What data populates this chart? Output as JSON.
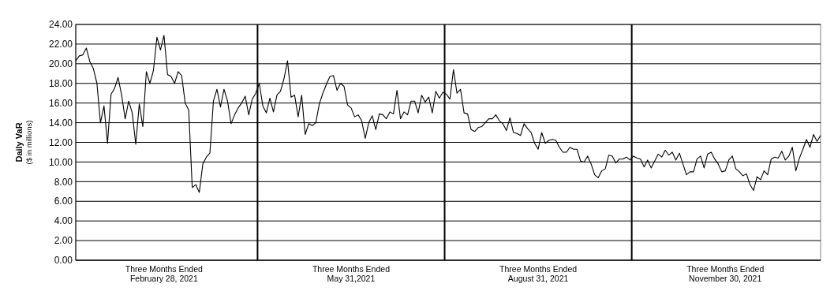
{
  "chart_data": {
    "type": "line",
    "ylabel": "Daily VaR\n($ in millions)",
    "categories": [
      null,
      null,
      null,
      null,
      null,
      null,
      null,
      null,
      null,
      null,
      null,
      null,
      null,
      null,
      null,
      null,
      null,
      null,
      null,
      null,
      null,
      null,
      null,
      null,
      null,
      "Three Months Ended\nFebruary 28, 2021",
      null,
      null,
      null,
      null,
      null,
      null,
      null,
      null,
      null,
      null,
      null,
      null,
      null,
      null,
      null,
      null,
      null,
      null,
      null,
      null,
      null,
      null,
      null,
      null,
      null,
      null,
      null,
      null,
      null,
      null,
      null,
      null,
      null,
      null,
      null,
      null,
      null,
      null,
      null,
      null,
      null,
      null,
      null,
      null,
      null,
      null,
      null,
      null,
      null,
      null,
      null,
      null,
      "Three Months Ended\nMay 31,2021",
      null,
      null,
      null,
      null,
      null,
      null,
      null,
      null,
      null,
      null,
      null,
      null,
      null,
      null,
      null,
      null,
      null,
      null,
      null,
      null,
      null,
      null,
      null,
      null,
      null,
      null,
      null,
      null,
      null,
      null,
      null,
      null,
      null,
      null,
      null,
      null,
      null,
      null,
      null,
      null,
      null,
      null,
      null,
      null,
      null,
      null,
      null,
      null,
      null,
      null,
      null,
      null,
      "Three Months Ended\nAugust 31, 2021",
      null,
      null,
      null,
      null,
      null,
      null,
      null,
      null,
      null,
      null,
      null,
      null,
      null,
      null,
      null,
      null,
      null,
      null,
      null,
      null,
      null,
      null,
      null,
      null,
      null,
      null,
      null,
      null,
      null,
      null,
      null,
      null,
      null,
      null,
      null,
      null,
      null,
      null,
      null,
      null,
      null,
      null,
      null,
      null,
      null,
      null,
      null,
      null,
      null,
      null,
      null,
      null,
      "Three Months Ended\nNovember 30, 2021",
      null,
      null,
      null,
      null,
      null,
      null,
      null,
      null,
      null,
      null,
      null,
      null,
      null,
      null,
      null,
      null,
      null,
      null,
      null,
      null,
      null,
      null,
      null,
      null,
      null,
      null,
      null
    ],
    "ylim": [
      0,
      24
    ],
    "yticks": [
      {
        "value": 0,
        "label": "0.00"
      },
      {
        "value": 2,
        "label": "2.00"
      },
      {
        "value": 4,
        "label": "4.00"
      },
      {
        "value": 6,
        "label": "6.00"
      },
      {
        "value": 8,
        "label": "8.00"
      },
      {
        "value": 10,
        "label": "10.00"
      },
      {
        "value": 12,
        "label": "12.00"
      },
      {
        "value": 14,
        "label": "14.00"
      },
      {
        "value": 16,
        "label": "16.00"
      },
      {
        "value": 18,
        "label": "18.00"
      },
      {
        "value": 20,
        "label": "20.00"
      },
      {
        "value": 22,
        "label": "22.00"
      },
      {
        "value": 24,
        "label": "24.00"
      }
    ],
    "grid": "y",
    "marker": "none",
    "line_style": "solid",
    "series": [
      {
        "color": "#000000",
        "values": [
          20.3,
          20.8,
          20.9,
          21.6,
          20.2,
          19.5,
          18.0,
          14.0,
          15.7,
          11.9,
          16.9,
          17.5,
          18.6,
          16.8,
          14.4,
          16.2,
          15.0,
          11.8,
          15.9,
          13.6,
          19.2,
          18.0,
          19.3,
          22.7,
          21.4,
          22.9,
          18.9,
          18.7,
          18.0,
          19.2,
          18.8,
          16.0,
          15.3,
          7.4,
          7.7,
          6.9,
          9.8,
          10.5,
          10.9,
          16.2,
          17.4,
          15.6,
          17.4,
          16.2,
          13.9,
          14.8,
          15.5,
          16.0,
          16.7,
          14.8,
          16.4,
          17.0,
          18.0,
          15.7,
          15.0,
          16.5,
          15.1,
          16.8,
          17.2,
          18.5,
          20.3,
          16.6,
          16.8,
          14.6,
          16.8,
          12.8,
          13.9,
          13.7,
          14.0,
          15.9,
          17.0,
          17.9,
          18.7,
          18.8,
          17.3,
          18.0,
          17.7,
          15.8,
          15.5,
          14.6,
          14.8,
          14.2,
          12.4,
          14.0,
          14.7,
          13.3,
          14.9,
          14.8,
          14.4,
          15.1,
          14.9,
          17.3,
          14.4,
          15.1,
          14.8,
          16.2,
          16.2,
          15.0,
          16.8,
          16.1,
          16.6,
          15.0,
          17.2,
          16.5,
          17.1,
          16.9,
          16.4,
          19.4,
          17.0,
          17.4,
          15.0,
          14.9,
          13.3,
          13.1,
          13.5,
          13.6,
          14.0,
          14.4,
          14.4,
          14.8,
          14.2,
          13.9,
          13.2,
          14.5,
          13.0,
          12.9,
          12.7,
          13.9,
          13.4,
          13.0,
          11.9,
          11.3,
          13.0,
          11.9,
          12.2,
          12.3,
          12.2,
          11.5,
          11.0,
          11.0,
          11.5,
          11.3,
          11.3,
          10.1,
          10.0,
          10.6,
          9.8,
          8.7,
          8.4,
          9.1,
          9.3,
          10.7,
          10.6,
          9.9,
          10.3,
          10.3,
          10.5,
          10.2,
          10.6,
          10.4,
          10.3,
          9.5,
          10.2,
          9.4,
          10.1,
          10.8,
          10.5,
          11.2,
          10.7,
          11.0,
          10.2,
          10.9,
          9.8,
          8.7,
          9.0,
          9.0,
          10.3,
          10.6,
          9.4,
          10.8,
          11.0,
          10.3,
          9.8,
          9.0,
          9.1,
          10.2,
          10.6,
          9.3,
          9.0,
          8.6,
          8.8,
          7.7,
          7.1,
          8.5,
          8.2,
          9.1,
          8.7,
          10.3,
          10.5,
          10.4,
          11.1,
          10.2,
          10.6,
          11.5,
          9.1,
          10.4,
          11.3,
          12.3,
          11.5,
          12.8,
          12.1,
          12.7
        ]
      }
    ]
  }
}
